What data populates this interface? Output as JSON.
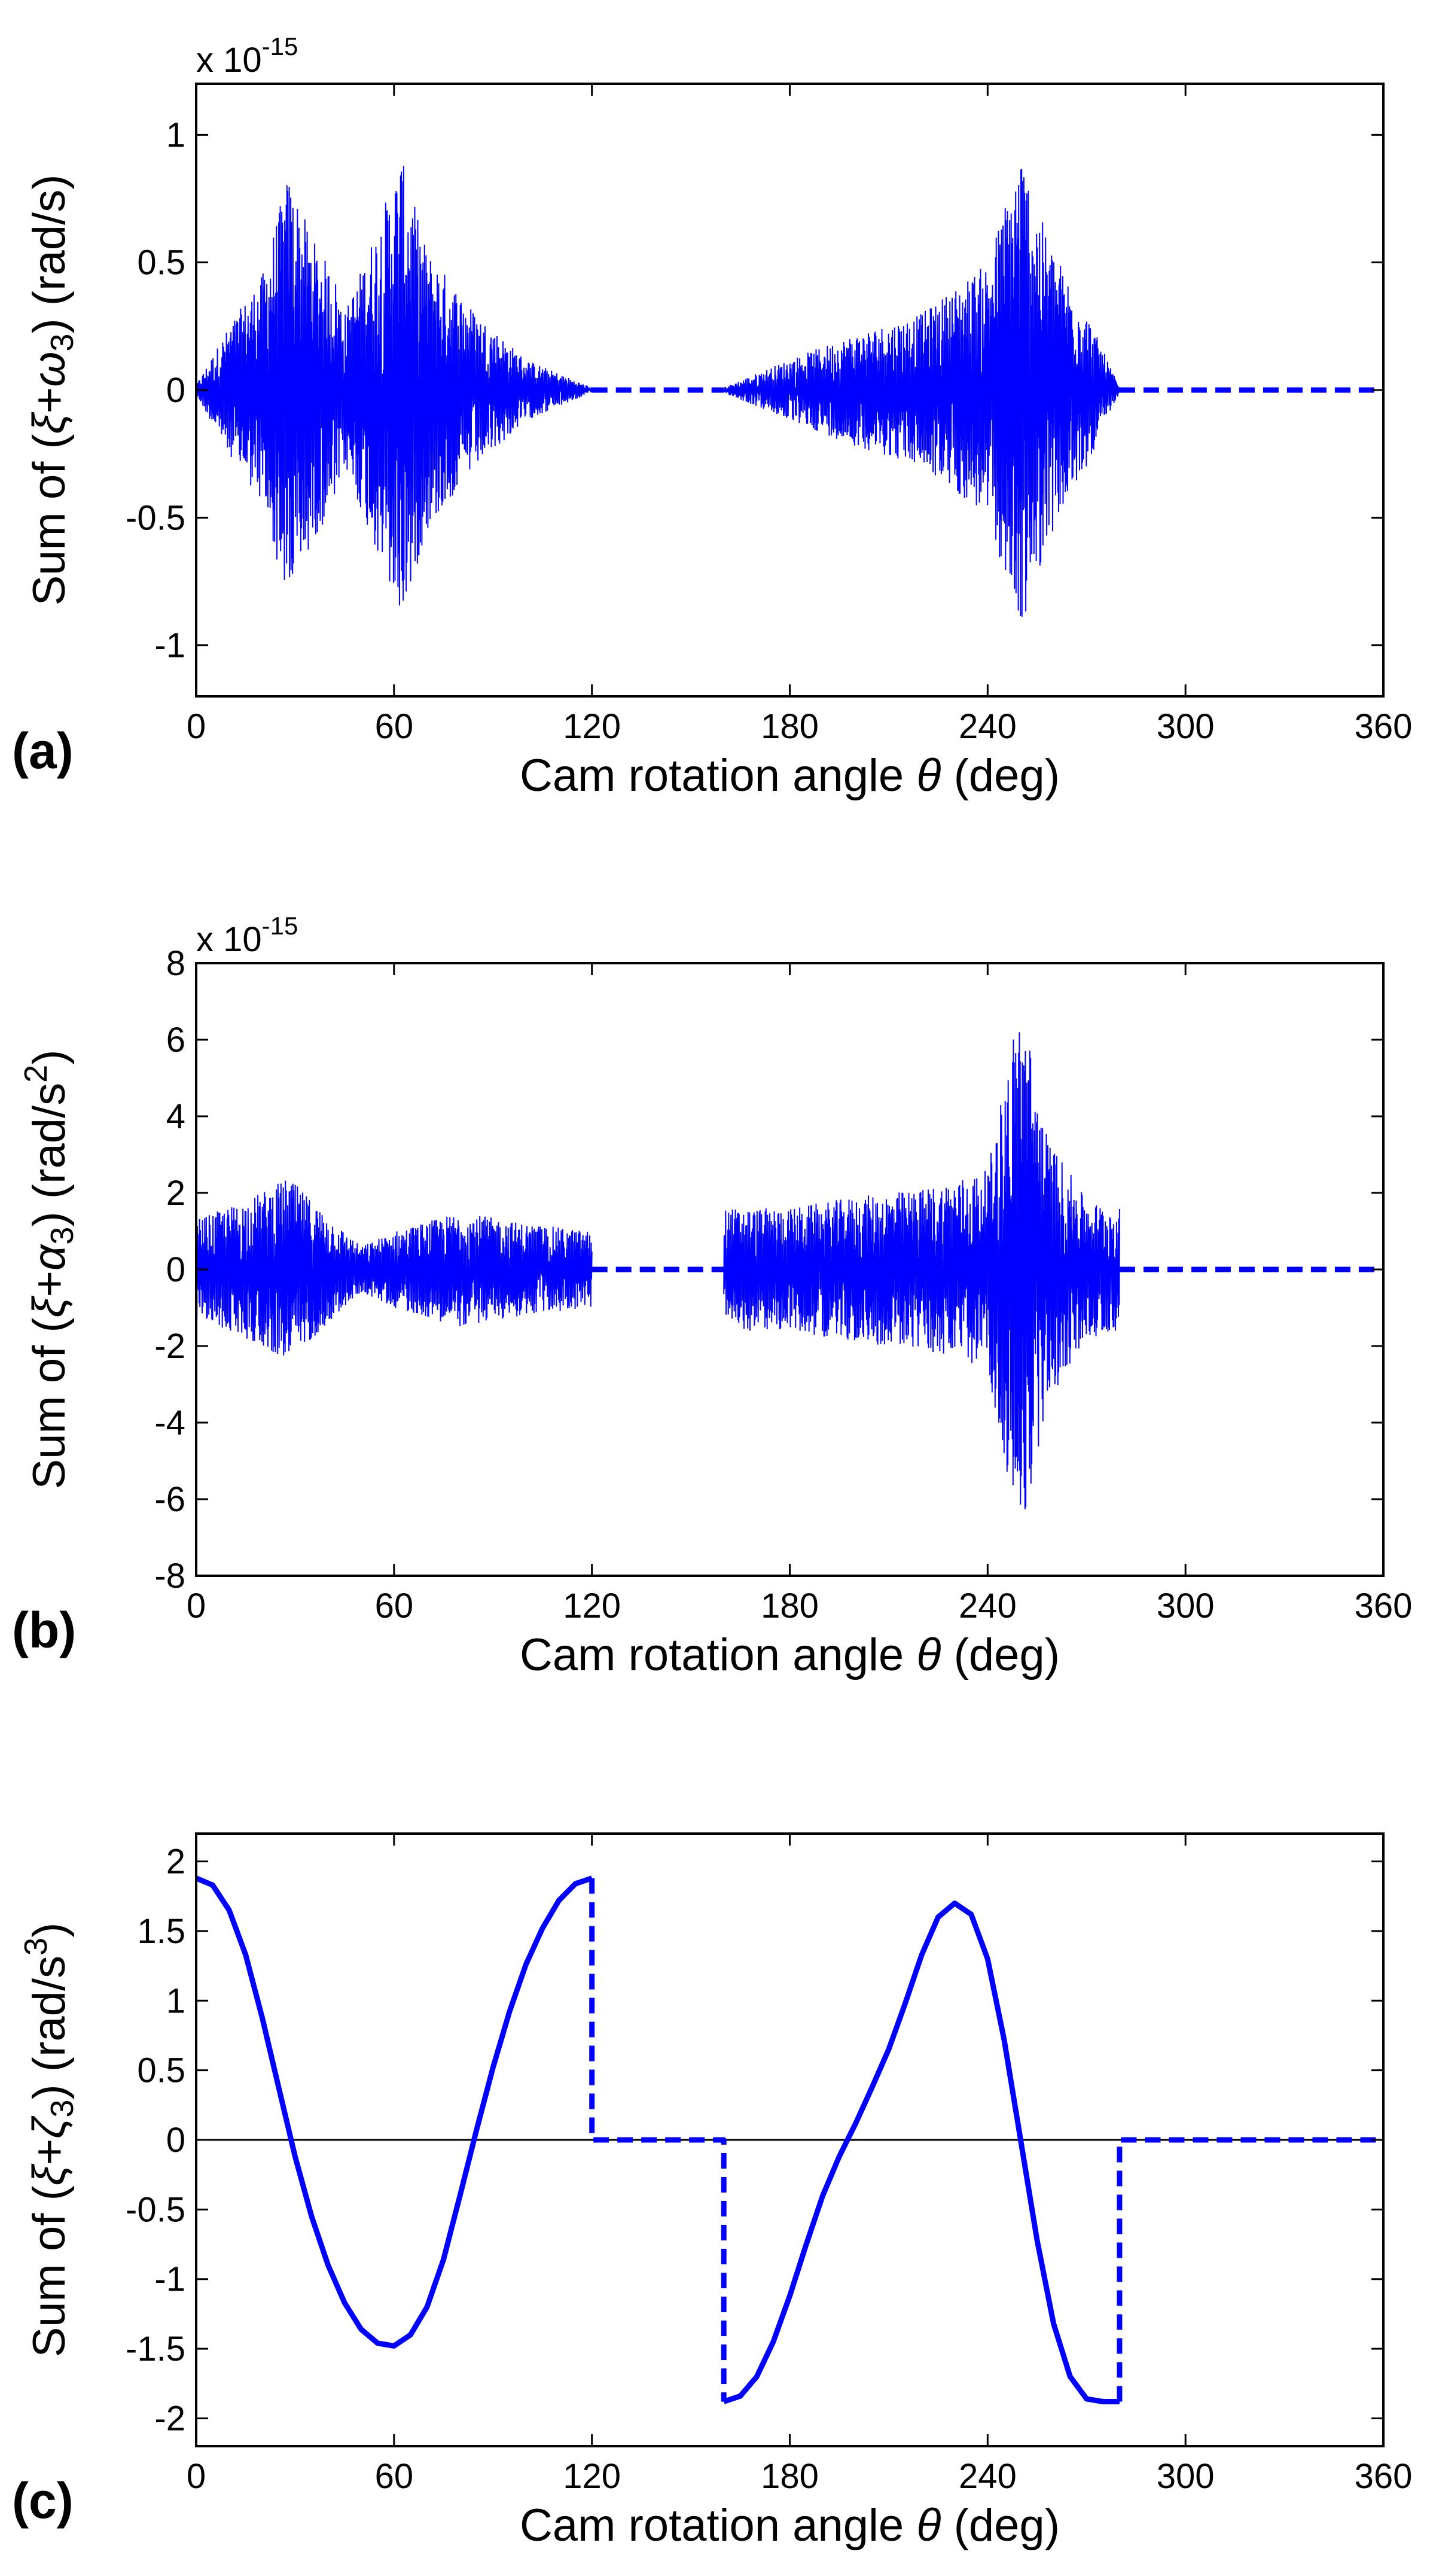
{
  "chart_data": [
    {
      "panel": "(a)",
      "type": "line",
      "exponent_text": "x 10",
      "exponent_power": "-15",
      "ylabel": "Sum of (ξ̇+ω₃) (rad/s)",
      "ylabel_parts": {
        "prefix": "Sum of (",
        "symbol": "ξ",
        "plus": "+",
        "var": "ω",
        "sub": "3",
        "suffix": ") (rad/s)"
      },
      "xlabel": "Cam rotation angle θ (deg)",
      "xlabel_parts": {
        "prefix": "Cam rotation angle ",
        "symbol": "θ",
        "suffix": " (deg)"
      },
      "xlim": [
        0,
        360
      ],
      "ylim": [
        -1.2,
        1.2
      ],
      "xticks": [
        "0",
        "60",
        "120",
        "180",
        "240",
        "300",
        "360"
      ],
      "yticks": [
        "1",
        "0.5",
        "0",
        "-0.5",
        "-1"
      ],
      "ytick_values": [
        1,
        0.5,
        0,
        -0.5,
        -1
      ],
      "series_color": "#0000ff",
      "series": [
        {
          "style": "noise-solid",
          "envelope": [
            [
              0,
              0.02
            ],
            [
              10,
              0.25
            ],
            [
              20,
              0.45
            ],
            [
              28,
              0.85
            ],
            [
              35,
              0.6
            ],
            [
              42,
              0.45
            ],
            [
              45,
              0.3
            ],
            [
              55,
              0.65
            ],
            [
              62,
              0.92
            ],
            [
              70,
              0.55
            ],
            [
              85,
              0.3
            ],
            [
              100,
              0.12
            ],
            [
              120,
              0.01
            ]
          ],
          "x_range": [
            0,
            120
          ]
        },
        {
          "style": "dashed",
          "x": [
            120,
            160
          ],
          "y": [
            0,
            0
          ]
        },
        {
          "style": "noise-solid",
          "envelope": [
            [
              160,
              0.01
            ],
            [
              180,
              0.12
            ],
            [
              200,
              0.22
            ],
            [
              220,
              0.3
            ],
            [
              240,
              0.5
            ],
            [
              250,
              0.95
            ],
            [
              258,
              0.6
            ],
            [
              270,
              0.3
            ],
            [
              280,
              0.01
            ]
          ],
          "x_range": [
            160,
            280
          ]
        },
        {
          "style": "dashed",
          "x": [
            280,
            360
          ],
          "y": [
            0,
            0
          ]
        }
      ]
    },
    {
      "panel": "(b)",
      "type": "line",
      "exponent_text": "x 10",
      "exponent_power": "-15",
      "ylabel": "Sum of (ξ̈+α₃) (rad/s²)",
      "ylabel_parts": {
        "prefix": "Sum of (",
        "symbol": "ξ",
        "plus": "+",
        "var": "α",
        "sub": "3",
        "suffix": ") (rad/s",
        "sup": "2",
        "end": ")"
      },
      "xlabel": "Cam rotation angle θ (deg)",
      "xlabel_parts": {
        "prefix": "Cam rotation angle ",
        "symbol": "θ",
        "suffix": " (deg)"
      },
      "xlim": [
        0,
        360
      ],
      "ylim": [
        -8,
        8
      ],
      "xticks": [
        "0",
        "60",
        "120",
        "180",
        "240",
        "300",
        "360"
      ],
      "yticks": [
        "8",
        "6",
        "4",
        "2",
        "0",
        "-2",
        "-4",
        "-6",
        "-8"
      ],
      "ytick_values": [
        8,
        6,
        4,
        2,
        0,
        -2,
        -4,
        -6,
        -8
      ],
      "series_color": "#0000ff",
      "series": [
        {
          "style": "noise-solid",
          "envelope": [
            [
              0,
              1.3
            ],
            [
              15,
              1.8
            ],
            [
              28,
              2.4
            ],
            [
              40,
              1.4
            ],
            [
              50,
              0.6
            ],
            [
              60,
              1.0
            ],
            [
              80,
              1.5
            ],
            [
              100,
              1.2
            ],
            [
              120,
              1.0
            ]
          ],
          "x_range": [
            0,
            120
          ]
        },
        {
          "style": "dashed",
          "x": [
            120,
            160
          ],
          "y": [
            0,
            0
          ]
        },
        {
          "style": "noise-solid",
          "envelope": [
            [
              160,
              1.6
            ],
            [
              180,
              1.6
            ],
            [
              200,
              1.9
            ],
            [
              220,
              2.1
            ],
            [
              240,
              2.6
            ],
            [
              250,
              7.2
            ],
            [
              258,
              3.5
            ],
            [
              270,
              1.8
            ],
            [
              280,
              1.6
            ]
          ],
          "x_range": [
            160,
            280
          ]
        },
        {
          "style": "dashed",
          "x": [
            280,
            360
          ],
          "y": [
            0,
            0
          ]
        }
      ]
    },
    {
      "panel": "(c)",
      "type": "line",
      "ylabel": "Sum of (ξ⃛+ζ₃) (rad/s³)",
      "ylabel_parts": {
        "prefix": "Sum of (",
        "symbol": "ξ",
        "plus": "+",
        "var": "ζ",
        "sub": "3",
        "suffix": ") (rad/s",
        "sup": "3",
        "end": ")"
      },
      "xlabel": "Cam rotation angle θ (deg)",
      "xlabel_parts": {
        "prefix": "Cam rotation angle ",
        "symbol": "θ",
        "suffix": " (deg)"
      },
      "xlim": [
        0,
        360
      ],
      "ylim": [
        -2.2,
        2.2
      ],
      "xticks": [
        "0",
        "60",
        "120",
        "180",
        "240",
        "300",
        "360"
      ],
      "yticks": [
        "2",
        "1.5",
        "1",
        "0.5",
        "0",
        "-0.5",
        "-1",
        "-1.5",
        "-2"
      ],
      "ytick_values": [
        2,
        1.5,
        1,
        0.5,
        0,
        -0.5,
        -1,
        -1.5,
        -2
      ],
      "series_color": "#0000ff",
      "zero_line": true,
      "series": [
        {
          "style": "solid",
          "x": [
            0,
            5,
            10,
            15,
            20,
            25,
            30,
            35,
            40,
            45,
            50,
            55,
            60,
            65,
            70,
            75,
            80,
            85,
            90,
            95,
            100,
            105,
            110,
            115,
            120
          ],
          "y": [
            1.88,
            1.83,
            1.65,
            1.33,
            0.88,
            0.38,
            -0.12,
            -0.55,
            -0.9,
            -1.17,
            -1.36,
            -1.46,
            -1.48,
            -1.4,
            -1.2,
            -0.86,
            -0.4,
            0.07,
            0.52,
            0.92,
            1.26,
            1.52,
            1.72,
            1.84,
            1.88
          ]
        },
        {
          "style": "dashed",
          "x": [
            120,
            120,
            160,
            160
          ],
          "y": [
            1.88,
            0,
            0,
            -1.88
          ]
        },
        {
          "style": "solid",
          "x": [
            160,
            165,
            170,
            175,
            180,
            185,
            190,
            195,
            200,
            205,
            210,
            215,
            220,
            225,
            230,
            235,
            240,
            245,
            250,
            255,
            260,
            265,
            270,
            275,
            280
          ],
          "y": [
            -1.88,
            -1.84,
            -1.7,
            -1.45,
            -1.12,
            -0.75,
            -0.4,
            -0.12,
            0.12,
            0.38,
            0.65,
            0.98,
            1.33,
            1.6,
            1.7,
            1.62,
            1.3,
            0.72,
            0.0,
            -0.72,
            -1.32,
            -1.7,
            -1.86,
            -1.88,
            -1.88
          ]
        },
        {
          "style": "dashed",
          "x": [
            280,
            280,
            360
          ],
          "y": [
            -1.88,
            0,
            0
          ]
        }
      ]
    }
  ]
}
